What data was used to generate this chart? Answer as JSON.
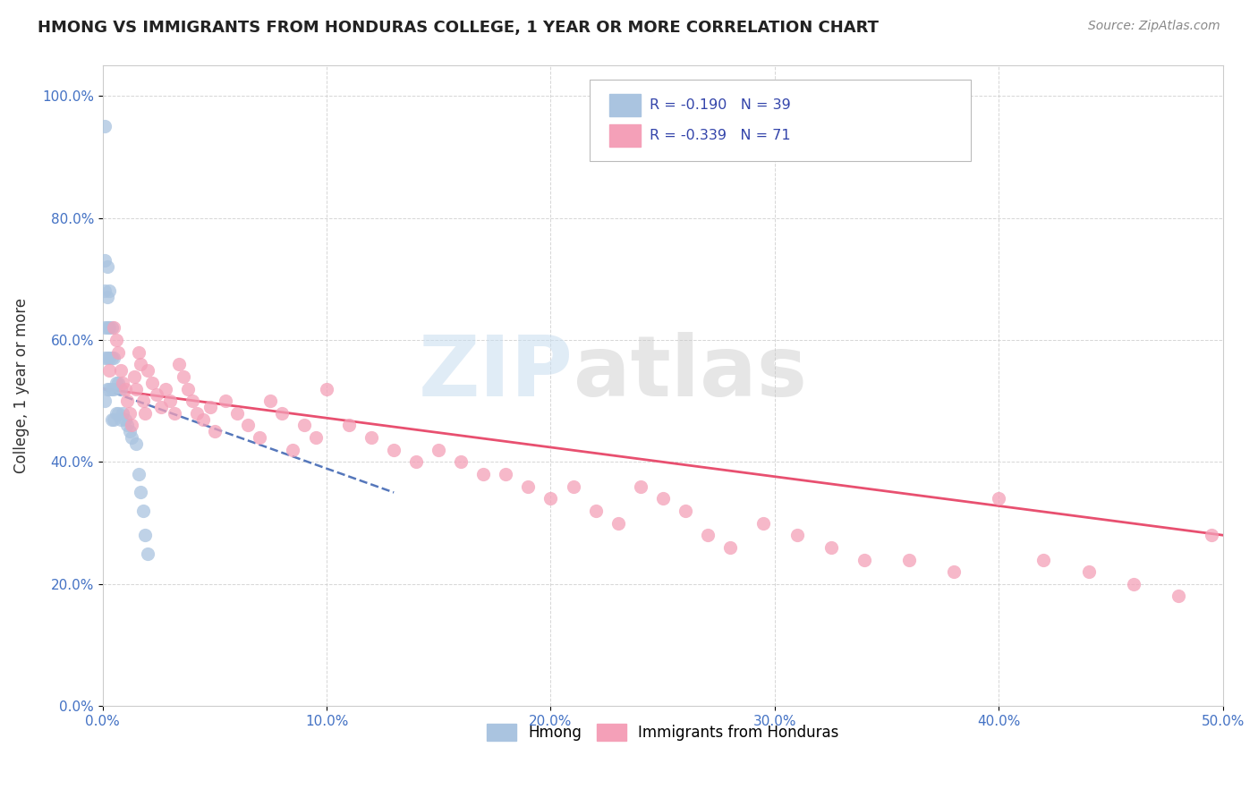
{
  "title": "HMONG VS IMMIGRANTS FROM HONDURAS COLLEGE, 1 YEAR OR MORE CORRELATION CHART",
  "source": "Source: ZipAtlas.com",
  "ylabel": "College, 1 year or more",
  "xmin": 0.0,
  "xmax": 0.5,
  "ymin": 0.0,
  "ymax": 1.05,
  "x_ticks": [
    0.0,
    0.1,
    0.2,
    0.3,
    0.4,
    0.5
  ],
  "x_tick_labels": [
    "0.0%",
    "10.0%",
    "20.0%",
    "30.0%",
    "40.0%",
    "50.0%"
  ],
  "y_ticks": [
    0.0,
    0.2,
    0.4,
    0.6,
    0.8,
    1.0
  ],
  "y_tick_labels": [
    "0.0%",
    "20.0%",
    "40.0%",
    "60.0%",
    "80.0%",
    "100.0%"
  ],
  "hmong_R": -0.19,
  "hmong_N": 39,
  "honduras_R": -0.339,
  "honduras_N": 71,
  "hmong_color": "#aac4e0",
  "honduras_color": "#f4a0b8",
  "hmong_line_color": "#5577bb",
  "honduras_line_color": "#e85070",
  "watermark_zip": "ZIP",
  "watermark_atlas": "atlas",
  "hmong_x": [
    0.001,
    0.001,
    0.001,
    0.001,
    0.001,
    0.001,
    0.002,
    0.002,
    0.002,
    0.002,
    0.002,
    0.003,
    0.003,
    0.003,
    0.003,
    0.004,
    0.004,
    0.004,
    0.004,
    0.005,
    0.005,
    0.005,
    0.006,
    0.006,
    0.007,
    0.007,
    0.008,
    0.008,
    0.009,
    0.01,
    0.011,
    0.012,
    0.013,
    0.015,
    0.016,
    0.017,
    0.018,
    0.019,
    0.02
  ],
  "hmong_y": [
    0.95,
    0.73,
    0.68,
    0.62,
    0.57,
    0.5,
    0.72,
    0.67,
    0.62,
    0.57,
    0.52,
    0.68,
    0.62,
    0.57,
    0.52,
    0.62,
    0.57,
    0.52,
    0.47,
    0.57,
    0.52,
    0.47,
    0.53,
    0.48,
    0.53,
    0.48,
    0.52,
    0.47,
    0.48,
    0.47,
    0.46,
    0.45,
    0.44,
    0.43,
    0.38,
    0.35,
    0.32,
    0.28,
    0.25
  ],
  "honduras_x": [
    0.003,
    0.005,
    0.006,
    0.007,
    0.008,
    0.009,
    0.01,
    0.011,
    0.012,
    0.013,
    0.014,
    0.015,
    0.016,
    0.017,
    0.018,
    0.019,
    0.02,
    0.022,
    0.024,
    0.026,
    0.028,
    0.03,
    0.032,
    0.034,
    0.036,
    0.038,
    0.04,
    0.042,
    0.045,
    0.048,
    0.05,
    0.055,
    0.06,
    0.065,
    0.07,
    0.075,
    0.08,
    0.085,
    0.09,
    0.095,
    0.1,
    0.11,
    0.12,
    0.13,
    0.14,
    0.15,
    0.16,
    0.17,
    0.18,
    0.19,
    0.2,
    0.21,
    0.22,
    0.23,
    0.24,
    0.25,
    0.26,
    0.27,
    0.28,
    0.295,
    0.31,
    0.325,
    0.34,
    0.36,
    0.38,
    0.4,
    0.42,
    0.44,
    0.46,
    0.48,
    0.495
  ],
  "honduras_y": [
    0.55,
    0.62,
    0.6,
    0.58,
    0.55,
    0.53,
    0.52,
    0.5,
    0.48,
    0.46,
    0.54,
    0.52,
    0.58,
    0.56,
    0.5,
    0.48,
    0.55,
    0.53,
    0.51,
    0.49,
    0.52,
    0.5,
    0.48,
    0.56,
    0.54,
    0.52,
    0.5,
    0.48,
    0.47,
    0.49,
    0.45,
    0.5,
    0.48,
    0.46,
    0.44,
    0.5,
    0.48,
    0.42,
    0.46,
    0.44,
    0.52,
    0.46,
    0.44,
    0.42,
    0.4,
    0.42,
    0.4,
    0.38,
    0.38,
    0.36,
    0.34,
    0.36,
    0.32,
    0.3,
    0.36,
    0.34,
    0.32,
    0.28,
    0.26,
    0.3,
    0.28,
    0.26,
    0.24,
    0.24,
    0.22,
    0.34,
    0.24,
    0.22,
    0.2,
    0.18,
    0.28
  ],
  "hmong_line_x0": 0.0,
  "hmong_line_x1": 0.13,
  "hmong_line_y0": 0.52,
  "hmong_line_y1": 0.35,
  "honduras_line_x0": 0.0,
  "honduras_line_x1": 0.5,
  "honduras_line_y0": 0.52,
  "honduras_line_y1": 0.28
}
